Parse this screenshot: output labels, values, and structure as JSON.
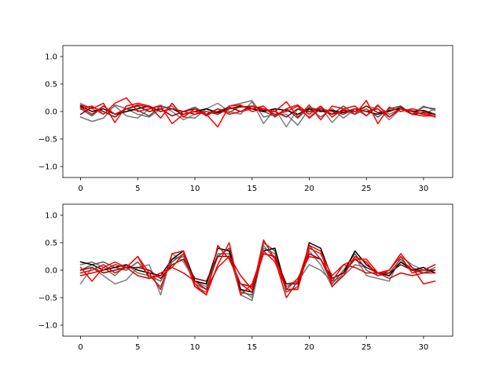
{
  "chart_data": [
    {
      "type": "line",
      "xlim": [
        -1.55,
        32.55
      ],
      "ylim": [
        -1.2,
        1.2
      ],
      "x_ticks": [
        0,
        5,
        10,
        15,
        20,
        25,
        30
      ],
      "y_ticks": [
        -1.0,
        -0.5,
        0.0,
        0.5,
        1.0
      ],
      "x_tick_labels": [
        "0",
        "5",
        "10",
        "15",
        "20",
        "25",
        "30"
      ],
      "y_tick_labels": [
        "−1.0",
        "−0.5",
        "0.0",
        "0.5",
        "1.0"
      ],
      "grid": false,
      "x": [
        0,
        1,
        2,
        3,
        4,
        5,
        6,
        7,
        8,
        9,
        10,
        11,
        12,
        13,
        14,
        15,
        16,
        17,
        18,
        19,
        20,
        21,
        22,
        23,
        24,
        25,
        26,
        27,
        28,
        29,
        30,
        31
      ],
      "series": [
        {
          "color": "#808080",
          "values": [
            0.15,
            0.05,
            -0.05,
            0.1,
            -0.08,
            -0.12,
            0.05,
            0.12,
            0.0,
            -0.15,
            -0.05,
            0.05,
            0.15,
            0.0,
            -0.05,
            0.18,
            -0.22,
            0.05,
            -0.28,
            0.05,
            -0.1,
            0.08,
            -0.2,
            0.02,
            -0.05,
            0.1,
            0.05,
            -0.15,
            0.05,
            -0.05,
            0.1,
            0.02
          ]
        },
        {
          "color": "#707070",
          "values": [
            -0.1,
            -0.18,
            -0.12,
            0.12,
            0.05,
            -0.05,
            -0.1,
            0.05,
            0.1,
            -0.1,
            -0.12,
            0.05,
            -0.05,
            0.1,
            0.15,
            0.2,
            -0.1,
            -0.05,
            -0.05,
            -0.25,
            0.05,
            -0.1,
            0.05,
            -0.12,
            0.05,
            -0.08,
            0.1,
            -0.05,
            0.05,
            0.02,
            -0.05,
            0.05
          ]
        },
        {
          "color": "#555555",
          "values": [
            0.05,
            -0.08,
            0.1,
            -0.05,
            0.05,
            0.02,
            -0.08,
            0.1,
            0.05,
            0.0,
            0.08,
            -0.05,
            0.05,
            -0.02,
            0.1,
            0.05,
            0.0,
            -0.08,
            0.05,
            -0.12,
            0.08,
            0.02,
            -0.05,
            0.1,
            -0.05,
            0.05,
            -0.1,
            0.05,
            0.1,
            -0.05,
            0.08,
            0.05
          ]
        },
        {
          "color": "#000000",
          "values": [
            0.1,
            0.0,
            0.05,
            -0.05,
            0.0,
            0.05,
            0.1,
            0.0,
            0.05,
            -0.05,
            0.0,
            0.05,
            -0.02,
            0.05,
            0.1,
            0.05,
            0.0,
            0.05,
            0.02,
            -0.05,
            0.05,
            0.0,
            0.02,
            -0.02,
            0.05,
            0.0,
            -0.05,
            0.02,
            0.05,
            0.0,
            0.02,
            -0.05
          ]
        },
        {
          "color": "#8b0000",
          "values": [
            -0.05,
            0.08,
            0.0,
            -0.1,
            0.05,
            0.1,
            0.0,
            0.05,
            -0.08,
            0.0,
            0.05,
            -0.05,
            0.0,
            0.08,
            0.0,
            0.1,
            0.02,
            0.0,
            -0.1,
            0.05,
            0.0,
            0.05,
            -0.05,
            0.02,
            0.0,
            0.1,
            -0.02,
            0.0,
            0.08,
            -0.05,
            -0.02,
            -0.05
          ]
        },
        {
          "color": "#ee0000",
          "values": [
            0.12,
            0.05,
            0.15,
            -0.2,
            0.1,
            0.15,
            0.1,
            -0.12,
            0.15,
            -0.1,
            0.05,
            -0.08,
            0.05,
            -0.05,
            0.0,
            0.05,
            0.1,
            -0.1,
            0.05,
            0.12,
            -0.05,
            0.1,
            -0.1,
            0.05,
            0.1,
            -0.08,
            0.12,
            -0.1,
            0.05,
            -0.05,
            -0.08,
            -0.08
          ]
        },
        {
          "color": "#ff0000",
          "values": [
            0.05,
            0.1,
            -0.05,
            0.15,
            0.25,
            0.0,
            0.05,
            0.1,
            -0.22,
            -0.05,
            0.0,
            -0.05,
            -0.28,
            0.1,
            0.12,
            0.0,
            0.05,
            0.0,
            0.18,
            -0.1,
            0.12,
            -0.15,
            0.1,
            0.05,
            -0.05,
            0.2,
            -0.22,
            0.08,
            0.0,
            0.05,
            0.0,
            -0.1
          ]
        },
        {
          "color": "#e00000",
          "values": [
            0.08,
            -0.05,
            0.1,
            -0.05,
            0.05,
            0.12,
            0.08,
            0.0,
            0.05,
            0.0,
            -0.05,
            0.0,
            -0.05,
            0.05,
            0.08,
            0.1,
            0.05,
            -0.05,
            0.0,
            0.1,
            -0.12,
            0.05,
            0.0,
            -0.05,
            0.05,
            0.0,
            0.05,
            -0.1,
            0.05,
            0.0,
            -0.05,
            -0.08
          ]
        }
      ]
    },
    {
      "type": "line",
      "xlim": [
        -1.55,
        32.55
      ],
      "ylim": [
        -1.2,
        1.2
      ],
      "x_ticks": [
        0,
        5,
        10,
        15,
        20,
        25,
        30
      ],
      "y_ticks": [
        -1.0,
        -0.5,
        0.0,
        0.5,
        1.0
      ],
      "x_tick_labels": [
        "0",
        "5",
        "10",
        "15",
        "20",
        "25",
        "30"
      ],
      "y_tick_labels": [
        "−1.0",
        "−0.5",
        "0.0",
        "0.5",
        "1.0"
      ],
      "grid": false,
      "x": [
        0,
        1,
        2,
        3,
        4,
        5,
        6,
        7,
        8,
        9,
        10,
        11,
        12,
        13,
        14,
        15,
        16,
        17,
        18,
        19,
        20,
        21,
        22,
        23,
        24,
        25,
        26,
        27,
        28,
        29,
        30,
        31
      ],
      "series": [
        {
          "color": "#808080",
          "values": [
            -0.25,
            0.05,
            -0.1,
            -0.25,
            -0.18,
            0.05,
            0.1,
            -0.45,
            0.3,
            0.15,
            -0.2,
            -0.3,
            0.4,
            0.35,
            -0.35,
            -0.5,
            0.45,
            0.2,
            -0.25,
            -0.2,
            0.35,
            0.1,
            -0.3,
            -0.05,
            0.25,
            -0.1,
            -0.15,
            -0.2,
            0.25,
            0.1,
            0.0,
            0.1
          ]
        },
        {
          "color": "#707070",
          "values": [
            0.1,
            0.15,
            0.05,
            -0.1,
            0.1,
            -0.05,
            -0.1,
            -0.3,
            0.2,
            0.25,
            -0.3,
            -0.4,
            0.3,
            0.3,
            -0.45,
            -0.55,
            0.4,
            0.3,
            -0.3,
            -0.2,
            0.1,
            0.0,
            -0.2,
            -0.1,
            0.1,
            0.05,
            -0.05,
            -0.1,
            0.15,
            0.05,
            -0.05,
            0.05
          ]
        },
        {
          "color": "#555555",
          "values": [
            0.0,
            0.1,
            0.15,
            0.05,
            0.0,
            0.15,
            -0.1,
            -0.2,
            0.15,
            0.3,
            -0.25,
            -0.35,
            0.25,
            0.4,
            -0.4,
            -0.45,
            0.5,
            0.35,
            -0.4,
            -0.3,
            0.45,
            0.2,
            -0.25,
            0.0,
            0.3,
            0.0,
            -0.1,
            -0.05,
            0.2,
            0.0,
            -0.05,
            0.0
          ]
        },
        {
          "color": "#000000",
          "values": [
            0.15,
            0.1,
            0.0,
            0.05,
            0.1,
            0.0,
            -0.05,
            -0.1,
            0.2,
            0.35,
            -0.2,
            -0.25,
            0.4,
            0.35,
            -0.35,
            -0.4,
            0.35,
            0.4,
            -0.35,
            -0.35,
            0.5,
            0.4,
            -0.15,
            -0.05,
            0.35,
            0.1,
            -0.05,
            -0.1,
            0.15,
            0.0,
            0.05,
            -0.05
          ]
        },
        {
          "color": "#8b0000",
          "values": [
            0.0,
            0.05,
            -0.05,
            0.0,
            0.05,
            0.05,
            0.0,
            -0.15,
            0.1,
            0.2,
            -0.15,
            -0.2,
            0.25,
            0.25,
            -0.25,
            -0.3,
            0.3,
            0.25,
            -0.25,
            -0.25,
            0.3,
            0.2,
            -0.15,
            -0.05,
            0.2,
            0.05,
            -0.05,
            -0.05,
            0.1,
            0.0,
            0.0,
            0.0
          ]
        },
        {
          "color": "#ee0000",
          "values": [
            -0.05,
            0.0,
            0.1,
            -0.05,
            0.05,
            0.25,
            -0.05,
            -0.35,
            0.3,
            0.35,
            -0.3,
            -0.45,
            0.45,
            0.2,
            -0.25,
            -0.4,
            0.55,
            0.2,
            -0.5,
            -0.2,
            0.45,
            0.35,
            -0.3,
            -0.1,
            0.25,
            0.15,
            -0.1,
            0.0,
            0.3,
            0.05,
            -0.25,
            -0.2
          ]
        },
        {
          "color": "#ff0000",
          "values": [
            0.05,
            -0.2,
            0.05,
            0.15,
            0.05,
            0.25,
            -0.15,
            -0.1,
            0.05,
            0.3,
            -0.25,
            -0.45,
            0.1,
            0.5,
            -0.45,
            -0.25,
            0.35,
            0.15,
            -0.35,
            -0.35,
            0.4,
            0.3,
            -0.1,
            0.1,
            0.2,
            0.2,
            -0.05,
            0.0,
            0.25,
            -0.05,
            0.0,
            0.1
          ]
        },
        {
          "color": "#e00000",
          "values": [
            -0.1,
            -0.05,
            0.0,
            0.1,
            0.05,
            -0.1,
            -0.15,
            -0.05,
            0.05,
            -0.05,
            -0.2,
            -0.35,
            0.05,
            0.25,
            -0.1,
            -0.35,
            0.3,
            0.25,
            -0.35,
            -0.15,
            0.25,
            0.2,
            -0.2,
            0.1,
            0.05,
            -0.05,
            -0.05,
            -0.15,
            -0.05,
            -0.1,
            -0.05,
            -0.05
          ]
        }
      ]
    }
  ]
}
